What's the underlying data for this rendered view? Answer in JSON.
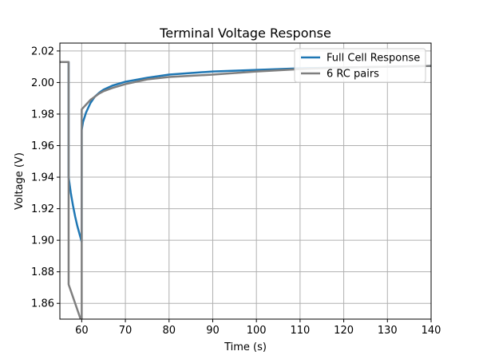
{
  "chart_data": {
    "type": "line",
    "title": "Terminal Voltage Response",
    "xlabel": "Time (s)",
    "ylabel": "Voltage (V)",
    "xlim": [
      55,
      140
    ],
    "ylim": [
      1.85,
      2.025
    ],
    "xticks": [
      60,
      70,
      80,
      90,
      100,
      110,
      120,
      130,
      140
    ],
    "yticks": [
      1.86,
      1.88,
      1.9,
      1.92,
      1.94,
      1.96,
      1.98,
      2.0,
      2.02
    ],
    "xtick_labels": [
      "60",
      "70",
      "80",
      "90",
      "100",
      "110",
      "120",
      "130",
      "140"
    ],
    "ytick_labels": [
      "1.86",
      "1.88",
      "1.90",
      "1.92",
      "1.94",
      "1.96",
      "1.98",
      "2.00",
      "2.02"
    ],
    "grid": true,
    "legend_position": "upper-right",
    "series": [
      {
        "name": "Full Cell Response",
        "color": "#1f77b4",
        "x": [
          55,
          57.0,
          57.0,
          57.5,
          58,
          58.5,
          59,
          59.5,
          60.0,
          60.0,
          60.3,
          61,
          62,
          63,
          64,
          65,
          67,
          70,
          75,
          80,
          90,
          100,
          110,
          120,
          130,
          140
        ],
        "y": [
          2.013,
          2.013,
          1.94,
          1.93,
          1.922,
          1.915,
          1.909,
          1.904,
          1.899,
          1.97,
          1.975,
          1.981,
          1.987,
          1.991,
          1.9935,
          1.9955,
          1.998,
          2.0005,
          2.003,
          2.005,
          2.007,
          2.008,
          2.009,
          2.0095,
          2.01,
          2.0105
        ]
      },
      {
        "name": "6 RC pairs",
        "color": "#7f7f7f",
        "x": [
          55,
          57.0,
          57.0,
          57.5,
          58,
          58.5,
          59,
          59.5,
          60.0,
          60.0,
          60.0,
          61,
          62,
          63,
          64,
          65,
          67,
          70,
          75,
          80,
          90,
          100,
          110,
          120,
          130,
          140
        ],
        "y": [
          2.013,
          2.013,
          1.872,
          1.868,
          1.864,
          1.86,
          1.856,
          1.852,
          1.848,
          1.848,
          1.983,
          1.986,
          1.989,
          1.991,
          1.993,
          1.9945,
          1.9965,
          1.999,
          2.002,
          2.0035,
          2.005,
          2.007,
          2.0085,
          2.0095,
          2.01,
          2.0105
        ]
      }
    ]
  }
}
